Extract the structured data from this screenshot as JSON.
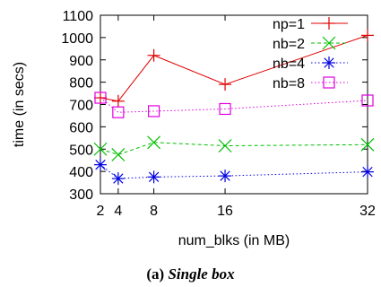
{
  "chart_data": {
    "type": "line",
    "xlabel": "num_blks (in MB)",
    "ylabel": "time (in secs)",
    "x": [
      2,
      4,
      8,
      16,
      32
    ],
    "xticks": [
      "2",
      "4",
      "8",
      "16",
      "32"
    ],
    "xlim": [
      2,
      32
    ],
    "ylim": [
      300,
      1100
    ],
    "yticks": [
      "300",
      "400",
      "500",
      "600",
      "700",
      "800",
      "900",
      "1000",
      "1100"
    ],
    "grid": false,
    "legend_position": "top-right",
    "series": [
      {
        "name": "np=1",
        "values": [
          730,
          715,
          920,
          790,
          1010
        ],
        "color": "#e00000",
        "marker": "plus",
        "line": "solid"
      },
      {
        "name": "nb=2",
        "values": [
          500,
          475,
          530,
          515,
          520
        ],
        "color": "#00c000",
        "marker": "x",
        "line": "dashed"
      },
      {
        "name": "nb=4",
        "values": [
          430,
          368,
          375,
          380,
          398
        ],
        "color": "#0000e0",
        "marker": "star",
        "line": "dotted"
      },
      {
        "name": "nb=8",
        "values": [
          730,
          665,
          670,
          680,
          718
        ],
        "color": "#e000e0",
        "marker": "square",
        "line": "dotted"
      }
    ]
  },
  "caption": {
    "label": "(a)",
    "title": "Single box"
  }
}
